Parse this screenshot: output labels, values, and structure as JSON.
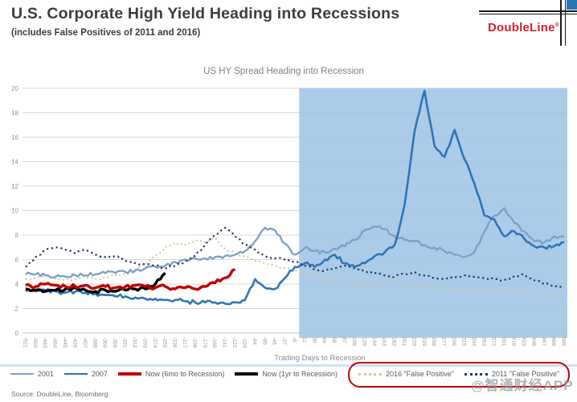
{
  "header": {
    "title": "U.S. Corporate High Yield Heading into Recessions",
    "subtitle": "(includes False Positives of 2011 and 2016)"
  },
  "logo": {
    "wordmark": "DoubleLine",
    "registered_mark": "®",
    "accent_red": "#d2232a",
    "accent_blue": "#2e75b6"
  },
  "footer": {
    "source": "Source: DoubleLine, Bloomberg"
  },
  "watermark": "@智通财经APP",
  "chart_data": {
    "type": "line",
    "title": "US HY Spread Heading into Recession",
    "xlabel": "Trading Days to Recession",
    "ylim": [
      0,
      20
    ],
    "ytick_step": 2,
    "xlim": [
      -527,
      511
    ],
    "grid": "horizontal",
    "legend_position": "bottom",
    "recession_shading": {
      "from_day": 0,
      "color": "#9cc3e5",
      "opacity": 0.85
    },
    "annotation_box": "false-positive legend entries circled in red",
    "x": [
      -521,
      -502,
      -483,
      -464,
      -445,
      -426,
      -407,
      -388,
      -369,
      -350,
      -331,
      -312,
      -293,
      -274,
      -255,
      -236,
      -217,
      -198,
      -179,
      -160,
      -141,
      -122,
      -103,
      -84,
      -65,
      -46,
      -27,
      -8,
      11,
      30,
      49,
      68,
      87,
      106,
      125,
      144,
      163,
      182,
      201,
      220,
      239,
      258,
      277,
      296,
      315,
      334,
      353,
      372,
      391,
      410,
      429,
      448,
      467,
      486,
      505
    ],
    "series": [
      {
        "name": "2001",
        "color": "#7da0c8",
        "style": "solid",
        "width": 2.4,
        "z": 1,
        "values": [
          4.8,
          4.8,
          4.7,
          4.6,
          4.6,
          4.7,
          4.7,
          4.8,
          4.9,
          4.9,
          5.0,
          5.1,
          5.3,
          5.4,
          5.5,
          5.8,
          6.0,
          6.1,
          6.1,
          6.2,
          6.3,
          6.4,
          6.7,
          7.5,
          8.6,
          8.4,
          7.3,
          6.4,
          7.0,
          6.7,
          6.6,
          6.9,
          7.1,
          7.6,
          8.4,
          8.7,
          8.5,
          7.9,
          7.6,
          7.5,
          7.2,
          7.0,
          6.7,
          6.4,
          6.2,
          6.6,
          8.3,
          9.6,
          10.2,
          9.0,
          8.3,
          7.5,
          7.4,
          7.9,
          7.8
        ]
      },
      {
        "name": "2007",
        "color": "#2e75b6",
        "style": "solid",
        "width": 2.6,
        "z": 2,
        "values": [
          3.4,
          3.4,
          3.5,
          3.4,
          3.3,
          3.4,
          3.3,
          3.2,
          3.1,
          3.0,
          3.0,
          2.9,
          2.8,
          2.8,
          2.7,
          2.7,
          2.6,
          2.5,
          2.5,
          2.5,
          2.4,
          2.5,
          2.7,
          4.4,
          3.7,
          3.6,
          4.5,
          5.4,
          5.7,
          5.4,
          6.0,
          6.4,
          5.7,
          5.4,
          5.7,
          6.3,
          6.6,
          7.2,
          10.5,
          16.5,
          19.8,
          15.3,
          14.4,
          16.6,
          14.2,
          12.2,
          9.6,
          9.3,
          7.9,
          8.3,
          7.7,
          7.1,
          7.0,
          7.1,
          7.4
        ]
      },
      {
        "name": "Now (6mo to Recession)",
        "color": "#c00000",
        "style": "solid",
        "width": 3.4,
        "z": 5,
        "values": [
          3.9,
          3.8,
          4.0,
          3.9,
          3.8,
          3.8,
          3.9,
          3.7,
          3.8,
          3.7,
          3.8,
          3.9,
          3.8,
          3.7,
          3.8,
          3.6,
          3.7,
          3.6,
          3.8,
          4.1,
          4.5,
          5.2,
          null,
          null,
          null,
          null,
          null,
          null,
          null,
          null,
          null,
          null,
          null,
          null,
          null,
          null,
          null,
          null,
          null,
          null,
          null,
          null,
          null,
          null,
          null,
          null,
          null,
          null,
          null,
          null,
          null,
          null,
          null,
          null,
          null
        ]
      },
      {
        "name": "Now (1yr to Recession)",
        "color": "#000000",
        "style": "solid",
        "width": 3.4,
        "z": 4,
        "values": [
          3.6,
          3.5,
          3.4,
          3.5,
          3.6,
          3.7,
          3.5,
          3.4,
          3.5,
          3.4,
          3.5,
          3.6,
          3.6,
          4.0,
          4.9,
          null,
          null,
          null,
          null,
          null,
          null,
          null,
          null,
          null,
          null,
          null,
          null,
          null,
          null,
          null,
          null,
          null,
          null,
          null,
          null,
          null,
          null,
          null,
          null,
          null,
          null,
          null,
          null,
          null,
          null,
          null,
          null,
          null,
          null,
          null,
          null,
          null,
          null,
          null,
          null
        ]
      },
      {
        "name": "2016 \"False Positive\"",
        "color": "#d8c69a",
        "style": "dotted",
        "width": 2.0,
        "z": 0,
        "values": [
          4.4,
          4.5,
          4.7,
          4.4,
          4.3,
          4.4,
          4.6,
          4.4,
          4.5,
          4.7,
          4.9,
          5.2,
          5.6,
          6.3,
          7.0,
          7.4,
          7.2,
          7.6,
          7.4,
          7.8,
          6.9,
          6.5,
          6.2,
          5.9,
          5.7,
          5.5,
          5.3,
          5.1,
          4.9,
          4.7,
          4.4,
          4.2,
          4.1,
          4.0,
          3.9,
          3.8,
          4.1,
          4.3,
          4.2,
          4.0,
          3.8,
          3.7,
          3.6,
          3.5,
          3.5,
          3.4,
          3.5,
          3.4,
          3.3,
          3.4,
          3.3,
          3.2,
          3.2,
          3.1,
          3.1
        ]
      },
      {
        "name": "2011 \"False Positive\"",
        "color": "#1f3864",
        "style": "dotted",
        "width": 2.2,
        "z": 3,
        "values": [
          5.4,
          6.2,
          6.8,
          7.0,
          6.8,
          6.5,
          6.8,
          6.4,
          6.2,
          6.3,
          5.9,
          5.7,
          5.6,
          5.5,
          5.3,
          5.5,
          5.8,
          6.3,
          7.2,
          8.0,
          8.6,
          7.9,
          7.2,
          6.8,
          6.3,
          6.1,
          6.0,
          5.8,
          5.5,
          5.2,
          5.1,
          5.3,
          5.5,
          5.3,
          5.0,
          4.9,
          4.7,
          4.6,
          4.8,
          5.0,
          4.7,
          4.5,
          4.4,
          4.6,
          4.7,
          4.6,
          4.5,
          4.4,
          4.3,
          4.6,
          4.8,
          4.3,
          4.0,
          3.9,
          3.7
        ]
      }
    ]
  }
}
